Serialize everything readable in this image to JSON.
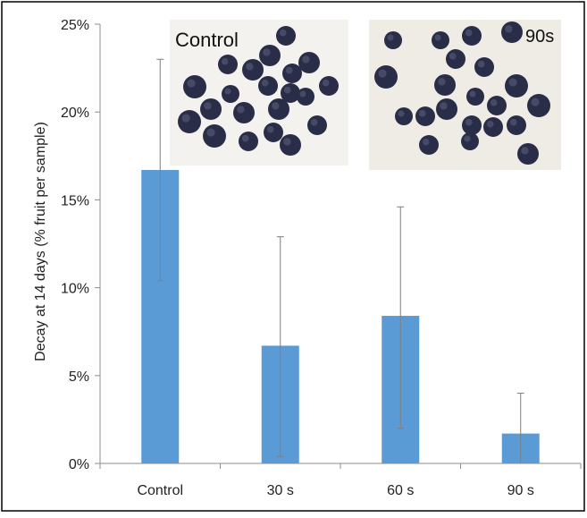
{
  "chart_data": {
    "type": "bar",
    "categories": [
      "Control",
      "30 s",
      "60 s",
      "90 s"
    ],
    "values": [
      16.7,
      6.7,
      8.4,
      1.7
    ],
    "error_high": [
      23.0,
      12.9,
      14.6,
      4.0
    ],
    "error_low": [
      10.4,
      0.4,
      2.0,
      0.0
    ],
    "ylabel": "Decay at 14 days (% fruit per sample)",
    "ylim": [
      0,
      25
    ],
    "yticks": [
      "0%",
      "5%",
      "10%",
      "15%",
      "20%",
      "25%"
    ],
    "ytick_values": [
      0,
      5,
      10,
      15,
      20,
      25
    ],
    "grid": false,
    "bar_color": "#5b9bd5",
    "error_color": "#7f7f7f",
    "axis_color": "#8c8c8c",
    "border_color": "#000000"
  },
  "insets": {
    "left_label": "Control",
    "right_label": "90s",
    "berry_color": "#2a2d48",
    "berry_highlight": "#6a6f8c",
    "background": "#f4f2ee"
  }
}
